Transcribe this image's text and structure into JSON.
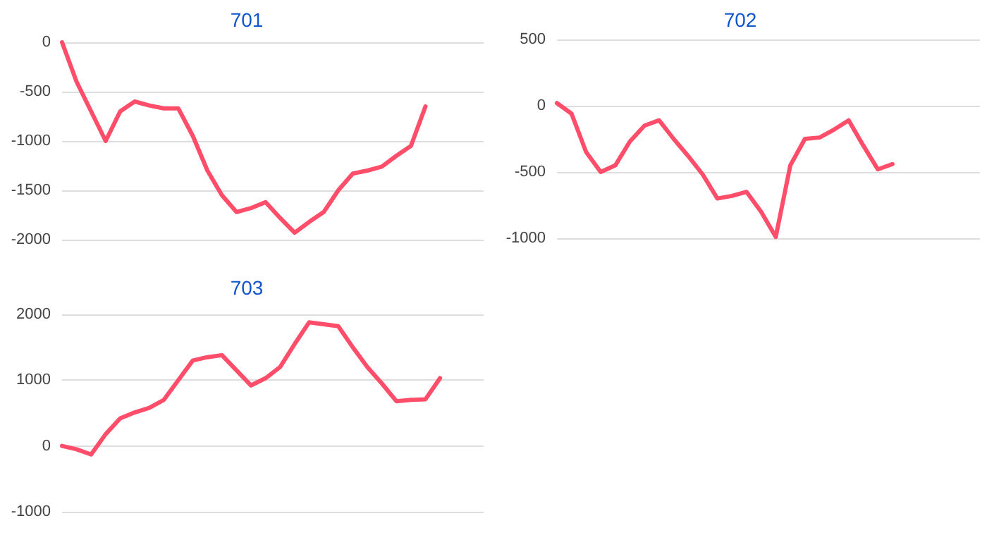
{
  "chart_data": [
    {
      "type": "line",
      "title": "701",
      "categories": [
        null,
        null,
        null,
        null,
        null,
        null,
        null,
        null,
        null,
        null,
        null,
        null,
        null,
        null,
        null,
        null,
        null,
        null,
        null,
        null,
        null,
        null,
        null,
        null,
        null,
        null,
        null,
        null,
        null,
        null
      ],
      "series": [
        {
          "color": "#ff4d6a",
          "values": [
            0,
            -400,
            -700,
            -1000,
            -700,
            -600,
            -640,
            -670,
            -670,
            -950,
            -1300,
            -1550,
            -1720,
            -1680,
            -1620,
            -1780,
            -1930,
            -1820,
            -1720,
            -1500,
            -1330,
            -1300,
            -1260,
            -1150,
            -1050,
            -650,
            null,
            null,
            null,
            null
          ]
        }
      ],
      "ylim": [
        -2000,
        0
      ],
      "yticks": [
        -2000,
        -1500,
        -1000,
        -500,
        0
      ],
      "grid": "y",
      "marker": "none",
      "line_style": "solid"
    },
    {
      "type": "line",
      "title": "702",
      "categories": [
        null,
        null,
        null,
        null,
        null,
        null,
        null,
        null,
        null,
        null,
        null,
        null,
        null,
        null,
        null,
        null,
        null,
        null,
        null,
        null,
        null,
        null,
        null,
        null,
        null,
        null,
        null,
        null,
        null,
        null
      ],
      "series": [
        {
          "color": "#ff4d6a",
          "values": [
            20,
            -60,
            -350,
            -500,
            -450,
            -270,
            -150,
            -110,
            -250,
            -380,
            -520,
            -700,
            -680,
            -650,
            -800,
            -990,
            -450,
            -250,
            -240,
            -180,
            -110,
            -300,
            -480,
            -440,
            null,
            null,
            null,
            null,
            null,
            null
          ]
        }
      ],
      "ylim": [
        -1000,
        500
      ],
      "yticks": [
        -1000,
        -500,
        0,
        500
      ],
      "grid": "y",
      "marker": "none",
      "line_style": "solid"
    },
    {
      "type": "line",
      "title": "703",
      "categories": [
        null,
        null,
        null,
        null,
        null,
        null,
        null,
        null,
        null,
        null,
        null,
        null,
        null,
        null,
        null,
        null,
        null,
        null,
        null,
        null,
        null,
        null,
        null,
        null,
        null,
        null,
        null,
        null,
        null,
        null
      ],
      "series": [
        {
          "color": "#ff4d6a",
          "values": [
            0,
            -50,
            -130,
            180,
            420,
            510,
            580,
            700,
            1000,
            1300,
            1350,
            1380,
            1150,
            920,
            1030,
            1200,
            1550,
            1880,
            1850,
            1820,
            1500,
            1200,
            950,
            680,
            700,
            710,
            1030,
            null,
            null,
            null
          ]
        }
      ],
      "ylim": [
        -1000,
        2000
      ],
      "yticks": [
        -1000,
        0,
        1000,
        2000
      ],
      "grid": "y",
      "marker": "none",
      "line_style": "solid"
    }
  ]
}
